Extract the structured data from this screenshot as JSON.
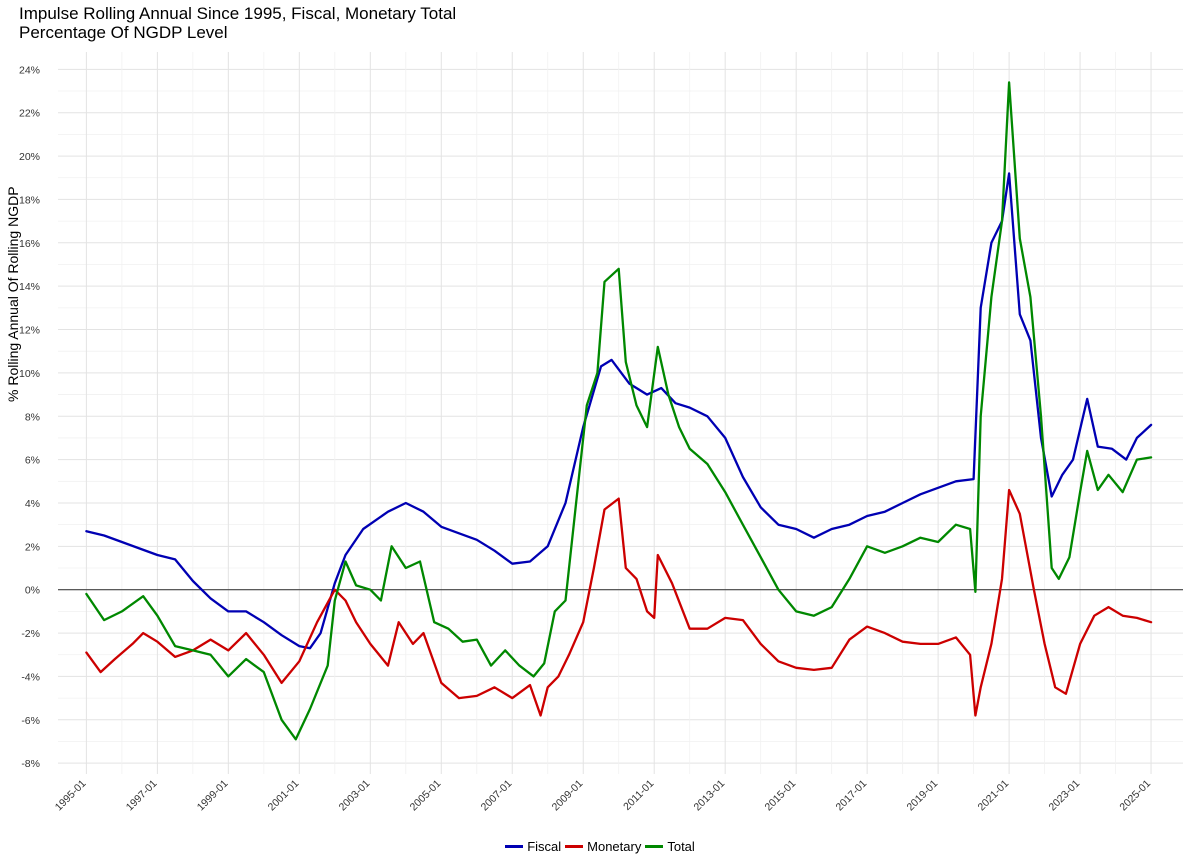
{
  "title_line1": "Impulse Rolling Annual Since 1995, Fiscal, Monetary Total",
  "title_line2": "Percentage Of NGDP Level",
  "chart_data": {
    "type": "line",
    "title": "Impulse Rolling Annual Since 1995, Fiscal, Monetary Total",
    "subtitle": "Percentage Of NGDP Level",
    "xlabel": "",
    "ylabel": "% Rolling Annual Of Rolling NGDP",
    "xlim": [
      1994.2,
      2025.9
    ],
    "ylim": [
      -8.5,
      24.8
    ],
    "y_ticks": [
      -8,
      -6,
      -4,
      -2,
      0,
      2,
      4,
      6,
      8,
      10,
      12,
      14,
      16,
      18,
      20,
      22,
      24
    ],
    "y_tick_labels": [
      "-8%",
      "-6%",
      "-4%",
      "-2%",
      "0%",
      "2%",
      "4%",
      "6%",
      "8%",
      "10%",
      "12%",
      "14%",
      "16%",
      "18%",
      "20%",
      "22%",
      "24%"
    ],
    "x_ticks": [
      1995,
      1997,
      1999,
      2001,
      2003,
      2005,
      2007,
      2009,
      2011,
      2013,
      2015,
      2017,
      2019,
      2021,
      2023,
      2025
    ],
    "x_tick_labels": [
      "1995-01",
      "1997-01",
      "1999-01",
      "2001-01",
      "2003-01",
      "2005-01",
      "2007-01",
      "2009-01",
      "2011-01",
      "2013-01",
      "2015-01",
      "2017-01",
      "2019-01",
      "2021-01",
      "2023-01",
      "2025-01"
    ],
    "grid": true,
    "reference_line_y": 0,
    "legend_position": "bottom",
    "series": [
      {
        "name": "Fiscal",
        "color": "#0000b3",
        "points": [
          [
            1995.0,
            2.7
          ],
          [
            1995.5,
            2.5
          ],
          [
            1996.0,
            2.2
          ],
          [
            1996.5,
            1.9
          ],
          [
            1997.0,
            1.6
          ],
          [
            1997.5,
            1.4
          ],
          [
            1998.0,
            0.4
          ],
          [
            1998.5,
            -0.4
          ],
          [
            1999.0,
            -1.0
          ],
          [
            1999.5,
            -1.0
          ],
          [
            2000.0,
            -1.5
          ],
          [
            2000.5,
            -2.1
          ],
          [
            2001.0,
            -2.6
          ],
          [
            2001.3,
            -2.7
          ],
          [
            2001.6,
            -2.0
          ],
          [
            2002.0,
            0.3
          ],
          [
            2002.3,
            1.6
          ],
          [
            2002.8,
            2.8
          ],
          [
            2003.5,
            3.6
          ],
          [
            2004.0,
            4.0
          ],
          [
            2004.5,
            3.6
          ],
          [
            2005.0,
            2.9
          ],
          [
            2005.5,
            2.6
          ],
          [
            2006.0,
            2.3
          ],
          [
            2006.5,
            1.8
          ],
          [
            2007.0,
            1.2
          ],
          [
            2007.5,
            1.3
          ],
          [
            2008.0,
            2.0
          ],
          [
            2008.5,
            4.0
          ],
          [
            2009.0,
            7.5
          ],
          [
            2009.5,
            10.3
          ],
          [
            2009.8,
            10.6
          ],
          [
            2010.3,
            9.5
          ],
          [
            2010.8,
            9.0
          ],
          [
            2011.2,
            9.3
          ],
          [
            2011.6,
            8.6
          ],
          [
            2012.0,
            8.4
          ],
          [
            2012.5,
            8.0
          ],
          [
            2013.0,
            7.0
          ],
          [
            2013.5,
            5.2
          ],
          [
            2014.0,
            3.8
          ],
          [
            2014.5,
            3.0
          ],
          [
            2015.0,
            2.8
          ],
          [
            2015.5,
            2.4
          ],
          [
            2016.0,
            2.8
          ],
          [
            2016.5,
            3.0
          ],
          [
            2017.0,
            3.4
          ],
          [
            2017.5,
            3.6
          ],
          [
            2018.0,
            4.0
          ],
          [
            2018.5,
            4.4
          ],
          [
            2019.0,
            4.7
          ],
          [
            2019.5,
            5.0
          ],
          [
            2020.0,
            5.1
          ],
          [
            2020.2,
            13.0
          ],
          [
            2020.5,
            16.0
          ],
          [
            2020.8,
            17.0
          ],
          [
            2021.0,
            19.2
          ],
          [
            2021.3,
            12.7
          ],
          [
            2021.6,
            11.5
          ],
          [
            2021.9,
            7.0
          ],
          [
            2022.2,
            4.3
          ],
          [
            2022.5,
            5.3
          ],
          [
            2022.8,
            6.0
          ],
          [
            2023.2,
            8.8
          ],
          [
            2023.5,
            6.6
          ],
          [
            2023.9,
            6.5
          ],
          [
            2024.3,
            6.0
          ],
          [
            2024.6,
            7.0
          ],
          [
            2025.0,
            7.6
          ]
        ]
      },
      {
        "name": "Monetary",
        "color": "#cc0000",
        "points": [
          [
            1995.0,
            -2.9
          ],
          [
            1995.4,
            -3.8
          ],
          [
            1995.8,
            -3.2
          ],
          [
            1996.3,
            -2.5
          ],
          [
            1996.6,
            -2.0
          ],
          [
            1997.0,
            -2.4
          ],
          [
            1997.5,
            -3.1
          ],
          [
            1998.0,
            -2.8
          ],
          [
            1998.5,
            -2.3
          ],
          [
            1999.0,
            -2.8
          ],
          [
            1999.5,
            -2.0
          ],
          [
            2000.0,
            -3.0
          ],
          [
            2000.5,
            -4.3
          ],
          [
            2001.0,
            -3.3
          ],
          [
            2001.5,
            -1.5
          ],
          [
            2002.0,
            0.0
          ],
          [
            2002.3,
            -0.5
          ],
          [
            2002.6,
            -1.5
          ],
          [
            2003.0,
            -2.5
          ],
          [
            2003.5,
            -3.5
          ],
          [
            2003.8,
            -1.5
          ],
          [
            2004.2,
            -2.5
          ],
          [
            2004.5,
            -2.0
          ],
          [
            2005.0,
            -4.3
          ],
          [
            2005.5,
            -5.0
          ],
          [
            2006.0,
            -4.9
          ],
          [
            2006.5,
            -4.5
          ],
          [
            2007.0,
            -5.0
          ],
          [
            2007.5,
            -4.4
          ],
          [
            2007.8,
            -5.8
          ],
          [
            2008.0,
            -4.5
          ],
          [
            2008.3,
            -4.0
          ],
          [
            2008.6,
            -3.0
          ],
          [
            2009.0,
            -1.5
          ],
          [
            2009.3,
            1.0
          ],
          [
            2009.6,
            3.7
          ],
          [
            2010.0,
            4.2
          ],
          [
            2010.2,
            1.0
          ],
          [
            2010.5,
            0.5
          ],
          [
            2010.8,
            -1.0
          ],
          [
            2011.0,
            -1.3
          ],
          [
            2011.1,
            1.6
          ],
          [
            2011.5,
            0.3
          ],
          [
            2012.0,
            -1.8
          ],
          [
            2012.5,
            -1.8
          ],
          [
            2013.0,
            -1.3
          ],
          [
            2013.5,
            -1.4
          ],
          [
            2014.0,
            -2.5
          ],
          [
            2014.5,
            -3.3
          ],
          [
            2015.0,
            -3.6
          ],
          [
            2015.5,
            -3.7
          ],
          [
            2016.0,
            -3.6
          ],
          [
            2016.5,
            -2.3
          ],
          [
            2017.0,
            -1.7
          ],
          [
            2017.5,
            -2.0
          ],
          [
            2018.0,
            -2.4
          ],
          [
            2018.5,
            -2.5
          ],
          [
            2019.0,
            -2.5
          ],
          [
            2019.5,
            -2.2
          ],
          [
            2019.9,
            -3.0
          ],
          [
            2020.05,
            -5.8
          ],
          [
            2020.2,
            -4.5
          ],
          [
            2020.5,
            -2.5
          ],
          [
            2020.8,
            0.5
          ],
          [
            2021.0,
            4.6
          ],
          [
            2021.3,
            3.5
          ],
          [
            2021.7,
            0.0
          ],
          [
            2022.0,
            -2.5
          ],
          [
            2022.3,
            -4.5
          ],
          [
            2022.6,
            -4.8
          ],
          [
            2023.0,
            -2.5
          ],
          [
            2023.4,
            -1.2
          ],
          [
            2023.8,
            -0.8
          ],
          [
            2024.2,
            -1.2
          ],
          [
            2024.6,
            -1.3
          ],
          [
            2025.0,
            -1.5
          ]
        ]
      },
      {
        "name": "Total",
        "color": "#008800",
        "points": [
          [
            1995.0,
            -0.2
          ],
          [
            1995.5,
            -1.4
          ],
          [
            1996.0,
            -1.0
          ],
          [
            1996.6,
            -0.3
          ],
          [
            1997.0,
            -1.2
          ],
          [
            1997.5,
            -2.6
          ],
          [
            1998.0,
            -2.8
          ],
          [
            1998.5,
            -3.0
          ],
          [
            1999.0,
            -4.0
          ],
          [
            1999.5,
            -3.2
          ],
          [
            2000.0,
            -3.8
          ],
          [
            2000.5,
            -6.0
          ],
          [
            2000.9,
            -6.9
          ],
          [
            2001.3,
            -5.5
          ],
          [
            2001.8,
            -3.5
          ],
          [
            2002.0,
            -0.5
          ],
          [
            2002.3,
            1.3
          ],
          [
            2002.6,
            0.2
          ],
          [
            2003.0,
            0.0
          ],
          [
            2003.3,
            -0.5
          ],
          [
            2003.6,
            2.0
          ],
          [
            2004.0,
            1.0
          ],
          [
            2004.4,
            1.3
          ],
          [
            2004.8,
            -1.5
          ],
          [
            2005.2,
            -1.8
          ],
          [
            2005.6,
            -2.4
          ],
          [
            2006.0,
            -2.3
          ],
          [
            2006.4,
            -3.5
          ],
          [
            2006.8,
            -2.8
          ],
          [
            2007.2,
            -3.5
          ],
          [
            2007.6,
            -4.0
          ],
          [
            2007.9,
            -3.4
          ],
          [
            2008.2,
            -1.0
          ],
          [
            2008.5,
            -0.5
          ],
          [
            2008.8,
            4.0
          ],
          [
            2009.1,
            8.5
          ],
          [
            2009.4,
            10.0
          ],
          [
            2009.6,
            14.2
          ],
          [
            2010.0,
            14.8
          ],
          [
            2010.2,
            10.5
          ],
          [
            2010.5,
            8.5
          ],
          [
            2010.8,
            7.5
          ],
          [
            2011.1,
            11.2
          ],
          [
            2011.4,
            9.0
          ],
          [
            2011.7,
            7.5
          ],
          [
            2012.0,
            6.5
          ],
          [
            2012.5,
            5.8
          ],
          [
            2013.0,
            4.5
          ],
          [
            2013.5,
            3.0
          ],
          [
            2014.0,
            1.5
          ],
          [
            2014.5,
            0.0
          ],
          [
            2015.0,
            -1.0
          ],
          [
            2015.5,
            -1.2
          ],
          [
            2016.0,
            -0.8
          ],
          [
            2016.5,
            0.5
          ],
          [
            2017.0,
            2.0
          ],
          [
            2017.5,
            1.7
          ],
          [
            2018.0,
            2.0
          ],
          [
            2018.5,
            2.4
          ],
          [
            2019.0,
            2.2
          ],
          [
            2019.5,
            3.0
          ],
          [
            2019.9,
            2.8
          ],
          [
            2020.05,
            -0.1
          ],
          [
            2020.2,
            8.0
          ],
          [
            2020.5,
            13.5
          ],
          [
            2020.8,
            17.0
          ],
          [
            2021.0,
            23.4
          ],
          [
            2021.3,
            16.2
          ],
          [
            2021.6,
            13.5
          ],
          [
            2021.9,
            8.0
          ],
          [
            2022.2,
            1.0
          ],
          [
            2022.4,
            0.5
          ],
          [
            2022.7,
            1.5
          ],
          [
            2023.0,
            4.5
          ],
          [
            2023.2,
            6.4
          ],
          [
            2023.5,
            4.6
          ],
          [
            2023.8,
            5.3
          ],
          [
            2024.2,
            4.5
          ],
          [
            2024.6,
            6.0
          ],
          [
            2025.0,
            6.1
          ]
        ]
      }
    ]
  }
}
